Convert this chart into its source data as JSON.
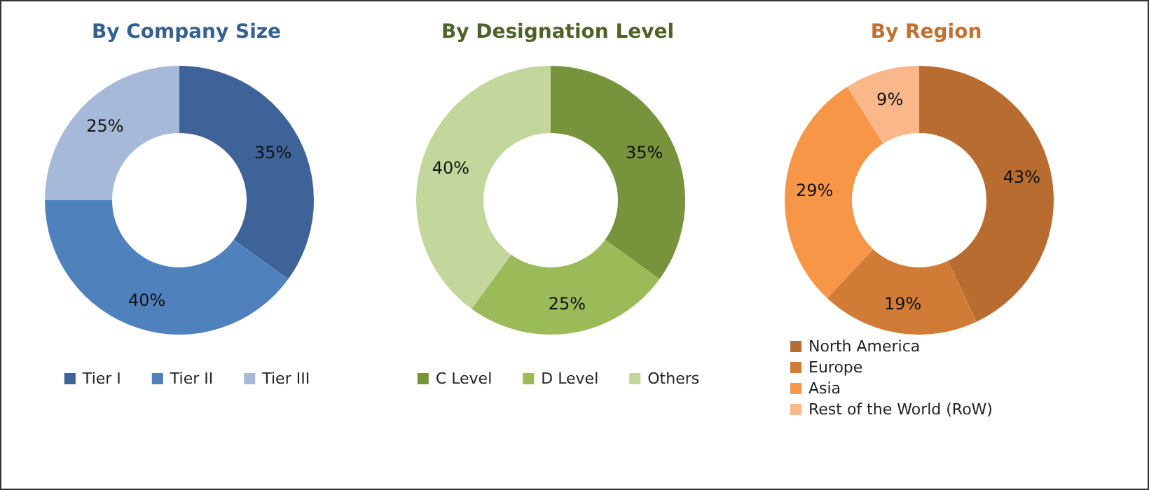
{
  "chart_data": [
    {
      "type": "donut",
      "title": "By Company Size",
      "categories": [
        "Tier I",
        "Tier II",
        "Tier III"
      ],
      "values": [
        35,
        40,
        25
      ],
      "colors": [
        "#3d6399",
        "#4f81bd",
        "#a7b9d8"
      ],
      "value_labels": [
        "35%",
        "40%",
        "25%"
      ],
      "legend": "bottom"
    },
    {
      "type": "donut",
      "title": "By Designation Level",
      "categories": [
        "C Level",
        "D Level",
        "Others"
      ],
      "values": [
        35,
        25,
        40
      ],
      "colors": [
        "#77933c",
        "#9bbb59",
        "#c3d69b"
      ],
      "value_labels": [
        "35%",
        "25%",
        "40%"
      ],
      "legend": "bottom"
    },
    {
      "type": "donut",
      "title": "By Region",
      "categories": [
        "North America",
        "Europe",
        "Asia",
        "Rest of the World (RoW)"
      ],
      "values": [
        43,
        19,
        29,
        9
      ],
      "colors": [
        "#b96c2f",
        "#d07c36",
        "#f79646",
        "#f9b78a"
      ],
      "value_labels": [
        "43%",
        "19%",
        "29%",
        "9%"
      ],
      "legend": "bottom left"
    }
  ]
}
